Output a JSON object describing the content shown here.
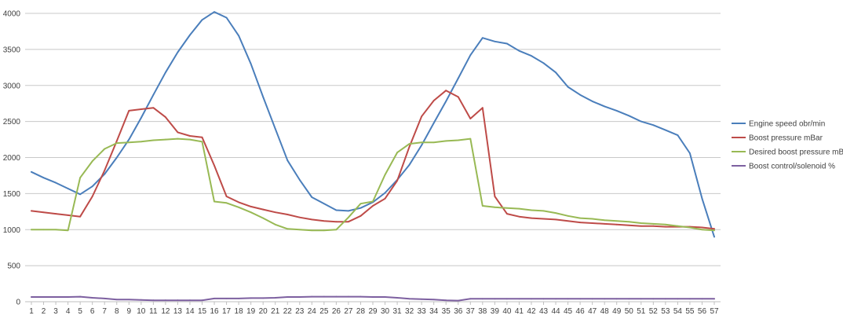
{
  "chart_data": {
    "type": "line",
    "title": "",
    "xlabel": "",
    "ylabel": "",
    "ylim": [
      0,
      4000
    ],
    "yticks": [
      0,
      500,
      1000,
      1500,
      2000,
      2500,
      3000,
      3500,
      4000
    ],
    "x": [
      1,
      2,
      3,
      4,
      5,
      6,
      7,
      8,
      9,
      10,
      11,
      12,
      13,
      14,
      15,
      16,
      17,
      18,
      19,
      20,
      21,
      22,
      23,
      24,
      25,
      26,
      27,
      28,
      29,
      30,
      31,
      32,
      33,
      34,
      35,
      36,
      37,
      38,
      39,
      40,
      41,
      42,
      43,
      44,
      45,
      46,
      47,
      48,
      49,
      50,
      51,
      52,
      53,
      54,
      55,
      56,
      57
    ],
    "grid": true,
    "legend_position": "right",
    "series": [
      {
        "name": "Engine speed obr/min",
        "color": "#4a7ebb",
        "values": [
          1800,
          1720,
          1650,
          1570,
          1490,
          1600,
          1770,
          2000,
          2250,
          2550,
          2870,
          3180,
          3460,
          3700,
          3910,
          4020,
          3940,
          3690,
          3300,
          2840,
          2400,
          1960,
          1690,
          1450,
          1360,
          1270,
          1260,
          1300,
          1380,
          1510,
          1690,
          1900,
          2170,
          2480,
          2780,
          3100,
          3420,
          3660,
          3610,
          3580,
          3480,
          3410,
          3310,
          3180,
          2980,
          2870,
          2780,
          2710,
          2650,
          2580,
          2500,
          2450,
          2380,
          2310,
          2060,
          1430,
          900
        ]
      },
      {
        "name": "Boost pressure mBar",
        "color": "#be4b48",
        "values": [
          1260,
          1240,
          1220,
          1200,
          1180,
          1460,
          1820,
          2230,
          2650,
          2670,
          2690,
          2560,
          2350,
          2300,
          2280,
          1890,
          1460,
          1380,
          1320,
          1280,
          1240,
          1210,
          1170,
          1140,
          1120,
          1110,
          1110,
          1190,
          1330,
          1430,
          1680,
          2150,
          2570,
          2790,
          2930,
          2840,
          2540,
          2690,
          1460,
          1220,
          1180,
          1160,
          1150,
          1140,
          1120,
          1100,
          1090,
          1080,
          1070,
          1060,
          1050,
          1050,
          1040,
          1040,
          1040,
          1030,
          1010
        ]
      },
      {
        "name": "Desired boost pressure mBar",
        "color": "#98b954",
        "values": [
          1000,
          1000,
          1000,
          990,
          1720,
          1950,
          2120,
          2200,
          2210,
          2220,
          2240,
          2250,
          2260,
          2250,
          2220,
          1390,
          1370,
          1310,
          1240,
          1160,
          1070,
          1010,
          1000,
          990,
          990,
          1000,
          1170,
          1360,
          1390,
          1760,
          2070,
          2190,
          2210,
          2210,
          2230,
          2240,
          2260,
          1330,
          1310,
          1300,
          1290,
          1270,
          1260,
          1230,
          1190,
          1160,
          1150,
          1130,
          1120,
          1110,
          1090,
          1080,
          1070,
          1050,
          1030,
          1000,
          990
        ]
      },
      {
        "name": "Boost control/solenoid %",
        "color": "#7d60a0",
        "values": [
          65,
          65,
          65,
          65,
          70,
          55,
          45,
          30,
          30,
          25,
          20,
          20,
          20,
          20,
          20,
          45,
          45,
          45,
          50,
          50,
          55,
          65,
          65,
          70,
          70,
          70,
          70,
          70,
          65,
          65,
          55,
          40,
          35,
          30,
          20,
          15,
          40,
          40,
          40,
          40,
          40,
          40,
          40,
          40,
          40,
          40,
          40,
          40,
          40,
          40,
          40,
          40,
          40,
          40,
          40,
          40,
          40
        ]
      }
    ]
  }
}
